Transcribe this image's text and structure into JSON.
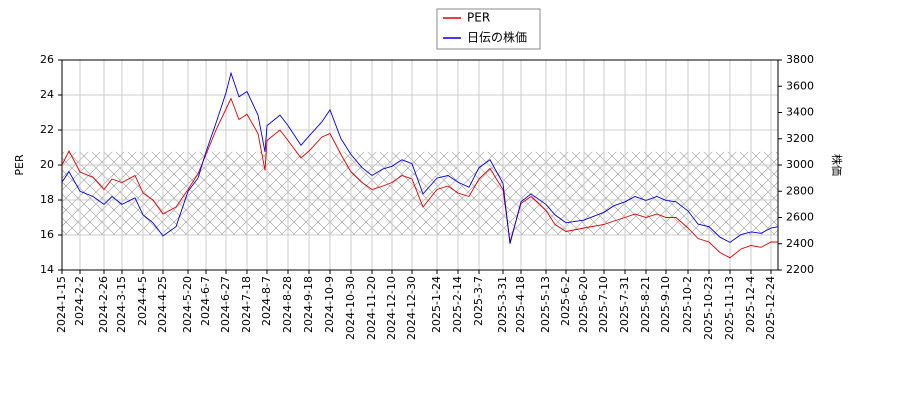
{
  "chart_data": {
    "type": "line",
    "x": [
      "2024-1-15",
      "2024-1-22",
      "2024-2-2",
      "2024-2-15",
      "2024-2-26",
      "2024-3-5",
      "2024-3-15",
      "2024-3-28",
      "2024-4-5",
      "2024-4-15",
      "2024-4-25",
      "2024-5-8",
      "2024-5-20",
      "2024-5-30",
      "2024-6-7",
      "2024-6-17",
      "2024-6-27",
      "2024-7-2",
      "2024-7-10",
      "2024-7-18",
      "2024-7-29",
      "2024-8-5",
      "2024-8-7",
      "2024-8-20",
      "2024-8-28",
      "2024-9-10",
      "2024-9-18",
      "2024-10-1",
      "2024-10-9",
      "2024-10-20",
      "2024-10-30",
      "2024-11-10",
      "2024-11-20",
      "2024-12-1",
      "2024-12-10",
      "2024-12-20",
      "2024-12-30",
      "2025-1-10",
      "2025-1-24",
      "2025-2-4",
      "2025-2-14",
      "2025-2-25",
      "2025-3-7",
      "2025-3-18",
      "2025-3-31",
      "2025-4-7",
      "2025-4-18",
      "2025-4-28",
      "2025-5-13",
      "2025-5-22",
      "2025-6-2",
      "2025-6-20",
      "2025-7-10",
      "2025-7-20",
      "2025-7-31",
      "2025-8-10",
      "2025-8-21",
      "2025-9-1",
      "2025-9-10",
      "2025-9-20",
      "2025-10-2",
      "2025-10-12",
      "2025-10-23",
      "2025-11-3",
      "2025-11-13",
      "2025-11-24",
      "2025-12-4",
      "2025-12-14",
      "2025-12-24",
      "2025-12-31"
    ],
    "series": [
      {
        "name": "PER",
        "color": "#dd0000",
        "axis": "y",
        "values": [
          20.0,
          20.8,
          19.6,
          19.3,
          18.6,
          19.2,
          19.0,
          19.4,
          18.4,
          18.0,
          17.2,
          17.6,
          18.6,
          19.5,
          20.6,
          22.0,
          23.2,
          23.8,
          22.6,
          22.9,
          21.8,
          19.7,
          21.4,
          22.0,
          21.4,
          20.4,
          20.8,
          21.6,
          21.8,
          20.6,
          19.6,
          19.0,
          18.6,
          18.8,
          19.0,
          19.4,
          19.2,
          17.6,
          18.6,
          18.8,
          18.4,
          18.2,
          19.2,
          19.8,
          18.6,
          15.6,
          17.8,
          18.2,
          17.4,
          16.6,
          16.2,
          16.4,
          16.6,
          16.8,
          17.0,
          17.2,
          17.0,
          17.2,
          17.0,
          17.0,
          16.4,
          15.8,
          15.6,
          15.0,
          14.7,
          15.2,
          15.4,
          15.3,
          15.6,
          15.6
        ]
      },
      {
        "name": "日伝の株価",
        "color": "#0000dd",
        "axis": "y2",
        "values": [
          2870,
          2950,
          2800,
          2760,
          2700,
          2760,
          2700,
          2750,
          2620,
          2560,
          2460,
          2530,
          2800,
          2900,
          3100,
          3320,
          3550,
          3700,
          3520,
          3560,
          3380,
          3100,
          3300,
          3380,
          3300,
          3150,
          3220,
          3330,
          3420,
          3200,
          3080,
          2980,
          2920,
          2970,
          2990,
          3040,
          3010,
          2780,
          2900,
          2920,
          2870,
          2830,
          2980,
          3040,
          2860,
          2400,
          2720,
          2780,
          2700,
          2620,
          2560,
          2580,
          2640,
          2690,
          2720,
          2760,
          2730,
          2760,
          2730,
          2720,
          2650,
          2550,
          2530,
          2450,
          2410,
          2470,
          2490,
          2480,
          2520,
          2530
        ]
      }
    ],
    "ylabel": "PER",
    "y2label": "株価",
    "xlim": [
      "2024-1-15",
      "2025-12-31"
    ],
    "xticks": [
      "2024-1-15",
      "2024-2-2",
      "2024-2-26",
      "2024-3-15",
      "2024-4-5",
      "2024-4-25",
      "2024-5-20",
      "2024-6-7",
      "2024-6-27",
      "2024-7-18",
      "2024-8-7",
      "2024-8-28",
      "2024-9-18",
      "2024-10-9",
      "2024-10-30",
      "2024-11-20",
      "2024-12-10",
      "2024-12-30",
      "2025-1-24",
      "2025-2-14",
      "2025-3-7",
      "2025-3-31",
      "2025-4-18",
      "2025-5-13",
      "2025-6-2",
      "2025-6-20",
      "2025-7-10",
      "2025-7-31",
      "2025-8-21",
      "2025-9-10",
      "2025-10-2",
      "2025-10-23",
      "2025-11-13",
      "2025-12-4",
      "2025-12-24"
    ],
    "ylim": [
      14,
      26
    ],
    "yticks": [
      14,
      16,
      18,
      20,
      22,
      24,
      26
    ],
    "y2lim": [
      2200,
      3800
    ],
    "y2ticks": [
      2200,
      2400,
      2600,
      2800,
      3000,
      3200,
      3400,
      3600,
      3800
    ],
    "shaded_range": [
      16,
      20.75
    ],
    "grid": true,
    "legend": "top"
  }
}
